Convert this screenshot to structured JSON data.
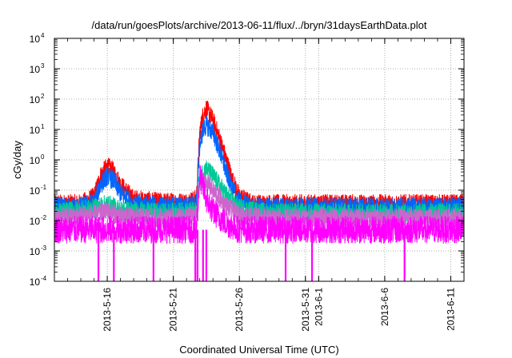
{
  "chart_data": {
    "type": "line",
    "title": "/data/run/goesPlots/archive/2013-06-11/flux/../bryn/31daysEarthData.plot",
    "xlabel": "Coordinated Universal Time (UTC)",
    "ylabel": "cGy/day",
    "yscale": "log",
    "ylim": [
      0.0001,
      10000
    ],
    "y_ticks": [
      {
        "mantissa": "10",
        "exp": "-4",
        "value": 0.0001
      },
      {
        "mantissa": "10",
        "exp": "-3",
        "value": 0.001
      },
      {
        "mantissa": "10",
        "exp": "-2",
        "value": 0.01
      },
      {
        "mantissa": "10",
        "exp": "-1",
        "value": 0.1
      },
      {
        "mantissa": "10",
        "exp": "0",
        "value": 1
      },
      {
        "mantissa": "10",
        "exp": "1",
        "value": 10
      },
      {
        "mantissa": "10",
        "exp": "2",
        "value": 100
      },
      {
        "mantissa": "10",
        "exp": "3",
        "value": 1000
      },
      {
        "mantissa": "10",
        "exp": "4",
        "value": 10000
      }
    ],
    "xlim": [
      "2013-05-12",
      "2013-06-12"
    ],
    "x_ticks": [
      "2013-5-16",
      "2013-5-21",
      "2013-5-26",
      "2013-5-31",
      "2013-6-1",
      "2013-6-6",
      "2013-6-11"
    ],
    "grid": true,
    "legend": "none",
    "series": [
      {
        "color": "#ff0000",
        "x": [
          "2013-05-12",
          "2013-05-14",
          "2013-05-15",
          "2013-05-15T12:00",
          "2013-05-16",
          "2013-05-16T12:00",
          "2013-05-17",
          "2013-05-18",
          "2013-05-20",
          "2013-05-22",
          "2013-05-22T18:00",
          "2013-05-23",
          "2013-05-23T06:00",
          "2013-05-23T12:00",
          "2013-05-24",
          "2013-05-24T12:00",
          "2013-05-25",
          "2013-05-25T12:00",
          "2013-05-26",
          "2013-05-27",
          "2013-05-29",
          "2013-06-01",
          "2013-06-04",
          "2013-06-07",
          "2013-06-10",
          "2013-06-12"
        ],
        "y": [
          0.035,
          0.035,
          0.06,
          0.3,
          0.6,
          0.4,
          0.15,
          0.05,
          0.04,
          0.04,
          0.05,
          8,
          30,
          50,
          20,
          5,
          1,
          0.2,
          0.06,
          0.035,
          0.035,
          0.035,
          0.035,
          0.035,
          0.035,
          0.035
        ]
      },
      {
        "color": "#0066ff",
        "x": [
          "2013-05-12",
          "2013-05-14",
          "2013-05-15",
          "2013-05-15T12:00",
          "2013-05-16",
          "2013-05-16T12:00",
          "2013-05-17",
          "2013-05-18",
          "2013-05-20",
          "2013-05-22",
          "2013-05-22T18:00",
          "2013-05-23",
          "2013-05-23T06:00",
          "2013-05-23T12:00",
          "2013-05-24",
          "2013-05-24T12:00",
          "2013-05-25",
          "2013-05-25T12:00",
          "2013-05-26",
          "2013-05-27",
          "2013-05-29",
          "2013-06-01",
          "2013-06-04",
          "2013-06-07",
          "2013-06-10",
          "2013-06-12"
        ],
        "y": [
          0.028,
          0.028,
          0.04,
          0.15,
          0.3,
          0.2,
          0.08,
          0.035,
          0.03,
          0.03,
          0.035,
          3,
          10,
          14,
          8,
          2,
          0.4,
          0.1,
          0.04,
          0.028,
          0.028,
          0.028,
          0.028,
          0.028,
          0.028,
          0.028
        ]
      },
      {
        "color": "#00c896",
        "x": [
          "2013-05-12",
          "2013-05-15",
          "2013-05-16",
          "2013-05-17",
          "2013-05-20",
          "2013-05-22T18:00",
          "2013-05-23",
          "2013-05-23T12:00",
          "2013-05-24",
          "2013-05-25",
          "2013-05-26",
          "2013-05-28",
          "2013-06-04",
          "2013-06-12"
        ],
        "y": [
          0.018,
          0.025,
          0.035,
          0.022,
          0.018,
          0.02,
          0.3,
          0.5,
          0.3,
          0.07,
          0.025,
          0.018,
          0.018,
          0.018
        ]
      },
      {
        "color": "#cc66cc",
        "x": [
          "2013-05-12",
          "2013-05-15",
          "2013-05-16",
          "2013-05-17",
          "2013-05-20",
          "2013-05-22T18:00",
          "2013-05-23",
          "2013-05-23T12:00",
          "2013-05-24",
          "2013-05-25",
          "2013-05-26",
          "2013-05-28",
          "2013-06-04",
          "2013-06-12"
        ],
        "y": [
          0.012,
          0.016,
          0.02,
          0.014,
          0.012,
          0.014,
          0.2,
          0.18,
          0.1,
          0.03,
          0.015,
          0.012,
          0.012,
          0.012
        ]
      },
      {
        "color": "#ff00ff",
        "x": [
          "2013-05-12",
          "2013-05-15",
          "2013-05-16",
          "2013-05-17",
          "2013-05-20",
          "2013-05-22T18:00",
          "2013-05-23",
          "2013-05-23T12:00",
          "2013-05-24",
          "2013-05-25",
          "2013-05-26",
          "2013-05-28",
          "2013-06-04",
          "2013-06-12"
        ],
        "y": [
          0.005,
          0.005,
          0.005,
          0.005,
          0.005,
          0.005,
          0.3,
          0.05,
          0.02,
          0.008,
          0.005,
          0.005,
          0.005,
          0.005
        ],
        "dropouts": [
          "2013-05-15T08:00",
          "2013-05-16T12:00",
          "2013-05-19T12:00",
          "2013-05-22T16:00",
          "2013-05-22T20:00",
          "2013-05-23T06:00",
          "2013-05-23T12:00",
          "2013-05-29T12:00",
          "2013-05-31T12:00",
          "2013-06-07T12:00"
        ]
      }
    ]
  }
}
